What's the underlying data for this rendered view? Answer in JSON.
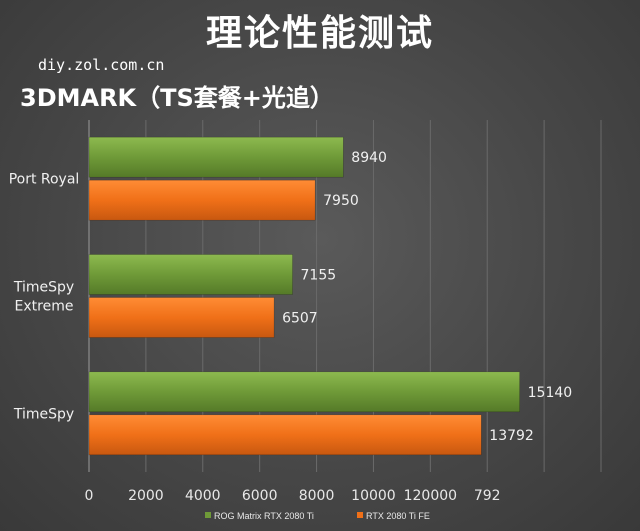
{
  "header": {
    "title": "理论性能测试",
    "watermark": "diy.zol.com.cn",
    "subtitle": "3DMARK（TS套餐+光追）"
  },
  "chart_data": {
    "type": "bar",
    "orientation": "horizontal",
    "categories": [
      "Port Royal",
      "TimeSpy Extreme",
      "TimeSpy"
    ],
    "category_display": [
      [
        "Port Royal"
      ],
      [
        "TimeSpy",
        "Extreme"
      ],
      [
        "TimeSpy"
      ]
    ],
    "series": [
      {
        "name": "ROG Matrix RTX 2080 Ti",
        "color": "#6f9a38",
        "values": [
          8940,
          7155,
          15140
        ]
      },
      {
        "name": "RTX 2080 Ti FE",
        "color": "#f07018",
        "values": [
          7950,
          6507,
          13792
        ]
      }
    ],
    "xlim": [
      0,
      18000
    ],
    "x_ticks": [
      "0",
      "2000",
      "4000",
      "6000",
      "8000",
      "10000",
      "120000",
      "792"
    ],
    "legend_position": "bottom",
    "grid": true
  }
}
